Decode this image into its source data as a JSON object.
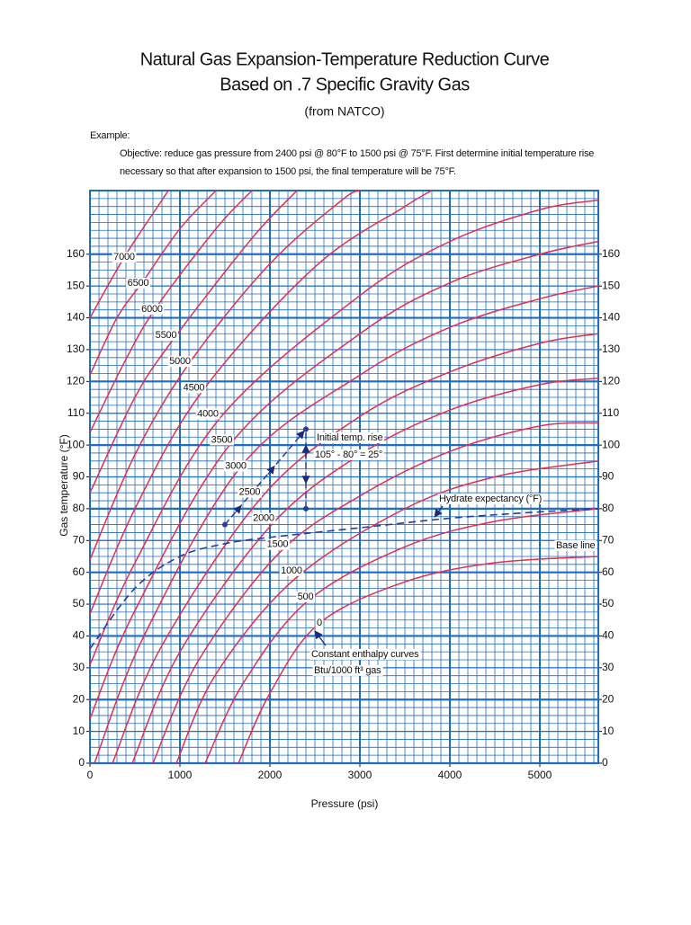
{
  "chart_data": {
    "type": "line",
    "title": "Natural Gas Expansion-Temperature Reduction Curve",
    "subtitle": "Based on .7 Specific Gravity Gas",
    "source": "(from NATCO)",
    "example_heading": "Example:",
    "example_text": [
      "Objective: reduce gas pressure from 2400 psi @ 80°F to 1500 psi @ 75°F. First determine initial temperature rise",
      "necessary so that after expansion to 1500 psi, the final temperature will be 75°F."
    ],
    "x_label": "Pressure (psi)",
    "y_label": "Gas temperature (°F)",
    "xlim": [
      0,
      5650
    ],
    "ylim": [
      0,
      180
    ],
    "xticks": [
      0,
      1000,
      2000,
      3000,
      4000,
      5000
    ],
    "yticks": [
      0,
      10,
      20,
      30,
      40,
      50,
      60,
      70,
      80,
      90,
      100,
      110,
      120,
      130,
      140,
      150,
      160
    ],
    "grid": true,
    "grid_color": "#1f6cc4",
    "annotations": [
      "Initial temp. rise",
      "105° - 80° = 25°",
      "Base line",
      "Constant enthalpy curves",
      "Btu/1000 ft³ gas"
    ],
    "series": [
      {
        "name": "0",
        "color": "#e0304e",
        "x": [
          1650,
          2000,
          2550,
          3500,
          4500,
          5650
        ],
        "values": [
          0,
          22,
          44,
          57,
          63,
          65
        ]
      },
      {
        "name": "500",
        "color": "#e0304e",
        "x": [
          1280,
          1700,
          2420,
          3500,
          4500,
          5650
        ],
        "values": [
          0,
          25,
          51,
          68,
          76,
          80
        ]
      },
      {
        "name": "1000",
        "color": "#e0304e",
        "x": [
          960,
          1400,
          2280,
          3500,
          4500,
          5650
        ],
        "values": [
          0,
          28,
          58,
          80,
          90,
          95
        ]
      },
      {
        "name": "1500",
        "color": "#e0304e",
        "x": [
          700,
          1200,
          2100,
          3000,
          4000,
          5000,
          5650
        ],
        "values": [
          0,
          32,
          66,
          84,
          98,
          106,
          107
        ]
      },
      {
        "name": "2000",
        "color": "#e0304e",
        "x": [
          470,
          1000,
          2020,
          3000,
          4000,
          5000,
          5650
        ],
        "values": [
          0,
          35,
          75,
          97,
          111,
          119,
          121
        ]
      },
      {
        "name": "2500",
        "color": "#e0304e",
        "x": [
          250,
          800,
          1920,
          3000,
          4000,
          5000,
          5650
        ],
        "values": [
          0,
          37,
          84,
          109,
          123,
          132,
          135
        ]
      },
      {
        "name": "3000",
        "color": "#e0304e",
        "x": [
          50,
          600,
          1700,
          3000,
          4000,
          5000,
          5650
        ],
        "values": [
          0,
          40,
          94,
          122,
          137,
          146,
          150
        ]
      },
      {
        "name": "3500",
        "color": "#e0304e",
        "x": [
          0,
          500,
          1580,
          3000,
          4000,
          5000,
          5650
        ],
        "values": [
          14,
          48,
          101,
          135,
          151,
          160,
          164
        ]
      },
      {
        "name": "4000",
        "color": "#e0304e",
        "x": [
          0,
          500,
          1460,
          3000,
          4000,
          5000,
          5650
        ],
        "values": [
          31,
          63,
          109,
          147,
          164,
          174,
          177
        ]
      },
      {
        "name": "4500",
        "color": "#e0304e",
        "x": [
          0,
          500,
          1250,
          2500,
          3500,
          3800
        ],
        "values": [
          47,
          80,
          117,
          156,
          175,
          180
        ]
      },
      {
        "name": "5000",
        "color": "#e0304e",
        "x": [
          0,
          500,
          1110,
          2000,
          2800,
          3000
        ],
        "values": [
          64,
          97,
          126,
          157,
          177,
          180
        ]
      },
      {
        "name": "5500",
        "color": "#e0304e",
        "x": [
          0,
          500,
          920,
          1800,
          2300
        ],
        "values": [
          85,
          115,
          133,
          165,
          180
        ]
      },
      {
        "name": "6000",
        "color": "#e0304e",
        "x": [
          0,
          400,
          730,
          1400,
          1800
        ],
        "values": [
          104,
          127,
          143,
          168,
          180
        ]
      },
      {
        "name": "6500",
        "color": "#e0304e",
        "x": [
          0,
          300,
          590,
          1000,
          1400
        ],
        "values": [
          122,
          140,
          151.5,
          168,
          180
        ]
      },
      {
        "name": "7000",
        "color": "#e0304e",
        "x": [
          0,
          380,
          800,
          870
        ],
        "values": [
          140,
          159,
          177,
          180
        ]
      },
      {
        "name": "Hydrate expectancy (°F)",
        "color": "#2b3a9e",
        "dashed": true,
        "x": [
          0,
          500,
          1000,
          1500,
          2000,
          3000,
          4000,
          5000,
          5650
        ],
        "values": [
          36,
          55,
          65,
          69,
          71,
          74,
          77,
          79,
          80
        ]
      }
    ],
    "example_path": {
      "color": "#2b3a9e",
      "x": [
        1500,
        2400,
        2400
      ],
      "values": [
        75,
        105,
        80
      ]
    }
  }
}
